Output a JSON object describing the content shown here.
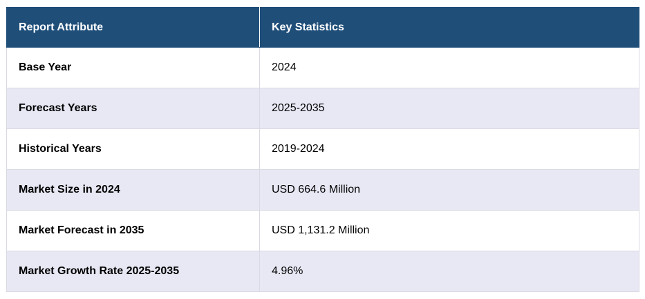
{
  "table": {
    "headers": [
      "Report Attribute",
      "Key Statistics"
    ],
    "rows": [
      {
        "attribute": "Base Year",
        "value": "2024"
      },
      {
        "attribute": "Forecast Years",
        "value": "2025-2035"
      },
      {
        "attribute": "Historical Years",
        "value": "2019-2024"
      },
      {
        "attribute": "Market Size in 2024",
        "value": "USD 664.6 Million"
      },
      {
        "attribute": "Market Forecast in 2035",
        "value": "USD 1,131.2 Million"
      },
      {
        "attribute": "Market Growth Rate 2025-2035",
        "value": "4.96%"
      }
    ],
    "colors": {
      "header_bg": "#1f4e79",
      "header_text": "#ffffff",
      "row_alt_bg": "#e8e8f5",
      "row_bg": "#ffffff",
      "border": "#d9d9e3"
    }
  }
}
